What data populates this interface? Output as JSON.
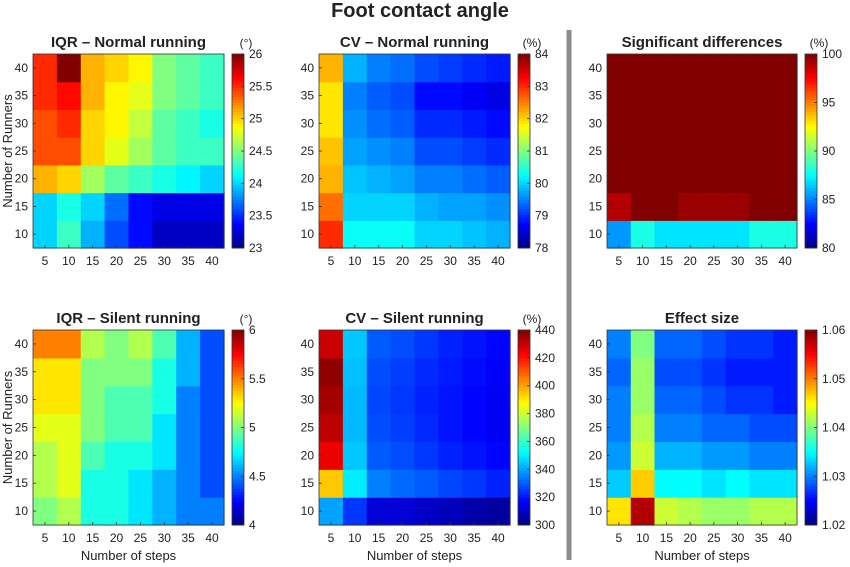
{
  "figure_title": "Foot contact angle",
  "chart_data": [
    {
      "type": "heatmap",
      "title": "IQR – Normal running",
      "unit": "(°)",
      "x_categories": [
        5,
        10,
        15,
        20,
        25,
        30,
        35,
        40
      ],
      "y_categories": [
        10,
        15,
        20,
        25,
        30,
        35,
        40
      ],
      "xlabel": "",
      "ylabel": "Number of Runners",
      "clim": [
        23,
        26
      ],
      "colorbar_ticks": [
        "23",
        "23.5",
        "24",
        "24.5",
        "25",
        "25.5",
        "26"
      ],
      "values": [
        [
          24.0,
          24.3,
          23.9,
          23.6,
          23.4,
          23.2,
          23.2,
          23.2
        ],
        [
          24.0,
          24.2,
          24.0,
          23.7,
          23.4,
          23.3,
          23.3,
          23.3
        ],
        [
          25.1,
          25.0,
          24.6,
          24.4,
          24.3,
          24.2,
          24.1,
          24.0
        ],
        [
          25.4,
          25.4,
          25.0,
          24.8,
          24.6,
          24.4,
          24.3,
          24.3
        ],
        [
          25.4,
          25.5,
          25.0,
          24.9,
          24.7,
          24.4,
          24.3,
          24.2
        ],
        [
          25.5,
          25.6,
          25.1,
          24.9,
          24.8,
          24.5,
          24.4,
          24.3
        ],
        [
          25.5,
          26.0,
          25.1,
          25.0,
          24.9,
          24.5,
          24.4,
          24.3
        ]
      ]
    },
    {
      "type": "heatmap",
      "title": "CV – Normal running",
      "unit": "(%)",
      "x_categories": [
        5,
        10,
        15,
        20,
        25,
        30,
        35,
        40
      ],
      "y_categories": [
        10,
        15,
        20,
        25,
        30,
        35,
        40
      ],
      "xlabel": "",
      "ylabel": "",
      "clim": [
        78,
        84
      ],
      "colorbar_ticks": [
        "78",
        "79",
        "80",
        "81",
        "82",
        "83",
        "84"
      ],
      "values": [
        [
          83.0,
          80.3,
          80.3,
          80.3,
          80.0,
          80.0,
          79.9,
          79.8
        ],
        [
          82.6,
          80.0,
          80.0,
          80.0,
          79.8,
          79.7,
          79.7,
          79.6
        ],
        [
          82.2,
          79.9,
          79.8,
          79.7,
          79.5,
          79.5,
          79.4,
          79.3
        ],
        [
          82.1,
          79.7,
          79.6,
          79.5,
          79.2,
          79.2,
          79.1,
          79.0
        ],
        [
          81.9,
          79.6,
          79.4,
          79.3,
          79.0,
          79.0,
          78.9,
          78.8
        ],
        [
          81.9,
          79.5,
          79.3,
          79.2,
          78.8,
          78.8,
          78.7,
          78.6
        ],
        [
          82.2,
          79.8,
          79.5,
          79.4,
          79.2,
          79.1,
          79.0,
          78.9
        ]
      ]
    },
    {
      "type": "heatmap",
      "title": "Significant differences",
      "unit": "(%)",
      "x_categories": [
        5,
        10,
        15,
        20,
        25,
        30,
        35,
        40
      ],
      "y_categories": [
        10,
        15,
        20,
        25,
        30,
        35,
        40
      ],
      "xlabel": "",
      "ylabel": "",
      "clim": [
        80,
        100
      ],
      "colorbar_ticks": [
        "80",
        "85",
        "90",
        "95",
        "100"
      ],
      "values": [
        [
          85.5,
          88.0,
          87.0,
          87.0,
          87.0,
          87.0,
          88.0,
          88.0
        ],
        [
          99.0,
          100,
          100,
          99.5,
          99.5,
          99.5,
          100,
          100
        ],
        [
          100,
          100,
          100,
          100,
          100,
          100,
          100,
          100
        ],
        [
          100,
          100,
          100,
          100,
          100,
          100,
          100,
          100
        ],
        [
          100,
          100,
          100,
          100,
          100,
          100,
          100,
          100
        ],
        [
          100,
          100,
          100,
          100,
          100,
          100,
          100,
          100
        ],
        [
          100,
          100,
          100,
          100,
          100,
          100,
          100,
          100
        ]
      ]
    },
    {
      "type": "heatmap",
      "title": "IQR – Silent running",
      "unit": "(°)",
      "x_categories": [
        5,
        10,
        15,
        20,
        25,
        30,
        35,
        40
      ],
      "y_categories": [
        10,
        15,
        20,
        25,
        30,
        35,
        40
      ],
      "xlabel": "Number of steps",
      "ylabel": "Number of Runners",
      "clim": [
        4,
        6
      ],
      "colorbar_ticks": [
        "4",
        "4.5",
        "5",
        "5.5",
        "6"
      ],
      "values": [
        [
          5.0,
          5.1,
          4.8,
          4.8,
          4.7,
          4.6,
          4.5,
          4.5
        ],
        [
          5.1,
          5.2,
          4.8,
          4.8,
          4.7,
          4.6,
          4.5,
          4.4
        ],
        [
          5.1,
          5.2,
          4.9,
          4.8,
          4.8,
          4.7,
          4.5,
          4.4
        ],
        [
          5.2,
          5.2,
          5.0,
          4.9,
          4.9,
          4.7,
          4.5,
          4.4
        ],
        [
          5.3,
          5.3,
          5.0,
          4.9,
          4.9,
          4.8,
          4.5,
          4.4
        ],
        [
          5.3,
          5.3,
          5.0,
          5.0,
          5.0,
          4.8,
          4.6,
          4.4
        ],
        [
          5.5,
          5.5,
          5.1,
          5.0,
          5.1,
          4.9,
          4.6,
          4.4
        ]
      ]
    },
    {
      "type": "heatmap",
      "title": "CV – Silent running",
      "unit": "(%)",
      "x_categories": [
        5,
        10,
        15,
        20,
        25,
        30,
        35,
        40
      ],
      "y_categories": [
        10,
        15,
        20,
        25,
        30,
        35,
        40
      ],
      "xlabel": "Number of steps",
      "ylabel": "",
      "clim": [
        300,
        440
      ],
      "colorbar_ticks": [
        "300",
        "320",
        "340",
        "360",
        "380",
        "400",
        "420",
        "440"
      ],
      "values": [
        [
          340,
          325,
          312,
          312,
          310,
          308,
          306,
          304
        ],
        [
          395,
          350,
          335,
          332,
          330,
          327,
          325,
          322
        ],
        [
          425,
          345,
          330,
          328,
          325,
          322,
          320,
          318
        ],
        [
          432,
          343,
          328,
          326,
          323,
          320,
          318,
          316
        ],
        [
          435,
          343,
          327,
          325,
          322,
          320,
          318,
          316
        ],
        [
          438,
          344,
          328,
          326,
          323,
          321,
          319,
          317
        ],
        [
          430,
          345,
          330,
          328,
          325,
          322,
          320,
          318
        ]
      ]
    },
    {
      "type": "heatmap",
      "title": "Effect size",
      "unit": "",
      "x_categories": [
        5,
        10,
        15,
        20,
        25,
        30,
        35,
        40
      ],
      "y_categories": [
        10,
        15,
        20,
        25,
        30,
        35,
        40
      ],
      "xlabel": "Number of steps",
      "ylabel": "",
      "clim": [
        1.02,
        1.06
      ],
      "colorbar_ticks": [
        "1.02",
        "1.03",
        "1.04",
        "1.05",
        "1.06"
      ],
      "values": [
        [
          1.046,
          1.058,
          1.043,
          1.042,
          1.041,
          1.041,
          1.042,
          1.042
        ],
        [
          1.033,
          1.047,
          1.035,
          1.035,
          1.034,
          1.035,
          1.034,
          1.034
        ],
        [
          1.031,
          1.043,
          1.032,
          1.032,
          1.031,
          1.031,
          1.03,
          1.03
        ],
        [
          1.03,
          1.042,
          1.03,
          1.03,
          1.029,
          1.029,
          1.028,
          1.028
        ],
        [
          1.03,
          1.041,
          1.029,
          1.029,
          1.028,
          1.027,
          1.027,
          1.026
        ],
        [
          1.029,
          1.041,
          1.028,
          1.028,
          1.027,
          1.026,
          1.026,
          1.026
        ],
        [
          1.03,
          1.04,
          1.029,
          1.029,
          1.028,
          1.027,
          1.027,
          1.026
        ]
      ]
    }
  ]
}
